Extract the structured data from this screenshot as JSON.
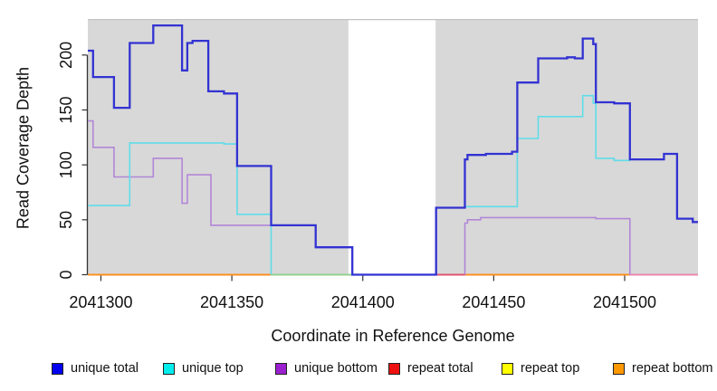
{
  "figure": {
    "xlabel": "Coordinate in Reference Genome",
    "ylabel": "Read Coverage Depth"
  },
  "legend": {
    "items": [
      {
        "label": "unique total",
        "color": "#0000ee"
      },
      {
        "label": "unique top",
        "color": "#00eded"
      },
      {
        "label": "unique bottom",
        "color": "#9b20d0"
      },
      {
        "label": "repeat total",
        "color": "#ee1111"
      },
      {
        "label": "repeat top",
        "color": "#ffff00"
      },
      {
        "label": "repeat bottom",
        "color": "#ff9800"
      }
    ]
  },
  "chart_data": {
    "type": "line",
    "step": true,
    "title": "",
    "xlabel": "Coordinate in Reference Genome",
    "ylabel": "Read Coverage Depth",
    "xlim": [
      2041295,
      2041528
    ],
    "ylim": [
      0,
      232
    ],
    "x_ticks": [
      2041300,
      2041350,
      2041400,
      2041450,
      2041500
    ],
    "y_ticks": [
      0,
      50,
      100,
      150,
      200
    ],
    "grid": false,
    "legend_position": "bottom",
    "plot_bg": "#d8d8d8",
    "gap_region": [
      2041394.5,
      2041427.8
    ],
    "series": [
      {
        "name": "unique total",
        "color": "#3232d2",
        "width": 2.3,
        "steps": [
          [
            2041295,
            204
          ],
          [
            2041297,
            180
          ],
          [
            2041305,
            152
          ],
          [
            2041311,
            211
          ],
          [
            2041320,
            227
          ],
          [
            2041331,
            186
          ],
          [
            2041333,
            211
          ],
          [
            2041335,
            213
          ],
          [
            2041341,
            167
          ],
          [
            2041347,
            165
          ],
          [
            2041352,
            99
          ],
          [
            2041365,
            45
          ],
          [
            2041382,
            25
          ],
          [
            2041396,
            0
          ],
          [
            2041428,
            61
          ],
          [
            2041439,
            105
          ],
          [
            2041440,
            109
          ],
          [
            2041447,
            110
          ],
          [
            2041457,
            112
          ],
          [
            2041459,
            175
          ],
          [
            2041467,
            197
          ],
          [
            2041478,
            198
          ],
          [
            2041481,
            197
          ],
          [
            2041484,
            215
          ],
          [
            2041488,
            210
          ],
          [
            2041489,
            157
          ],
          [
            2041496,
            156
          ],
          [
            2041502,
            105
          ],
          [
            2041515,
            110
          ],
          [
            2041520,
            51
          ],
          [
            2041526,
            48
          ]
        ]
      },
      {
        "name": "unique top",
        "color": "#5fdde9",
        "width": 1.6,
        "steps": [
          [
            2041295,
            63
          ],
          [
            2041311,
            120
          ],
          [
            2041347,
            119
          ],
          [
            2041352,
            55
          ],
          [
            2041365,
            0
          ],
          [
            2041428,
            61
          ],
          [
            2041439,
            62
          ],
          [
            2041459,
            124
          ],
          [
            2041467,
            144
          ],
          [
            2041484,
            163
          ],
          [
            2041488,
            156
          ],
          [
            2041489,
            106
          ],
          [
            2041496,
            104
          ],
          [
            2041502,
            105
          ],
          [
            2041515,
            110
          ],
          [
            2041520,
            51
          ],
          [
            2041526,
            48
          ]
        ]
      },
      {
        "name": "unique bottom",
        "color": "#b286d7",
        "width": 1.6,
        "steps": [
          [
            2041295,
            140
          ],
          [
            2041297,
            116
          ],
          [
            2041305,
            89
          ],
          [
            2041320,
            106
          ],
          [
            2041331,
            65
          ],
          [
            2041333,
            91
          ],
          [
            2041342,
            45
          ],
          [
            2041382,
            25
          ],
          [
            2041396,
            0
          ],
          [
            2041439,
            47
          ],
          [
            2041440,
            50
          ],
          [
            2041445,
            52
          ],
          [
            2041489,
            51
          ],
          [
            2041502,
            0
          ]
        ]
      },
      {
        "name": "repeat total",
        "color": "#dd2222",
        "width": 1.6,
        "steps": [
          [
            2041295,
            0
          ]
        ]
      },
      {
        "name": "repeat top",
        "color": "#f5ef30",
        "width": 1.6,
        "steps": [
          [
            2041295,
            0
          ]
        ]
      },
      {
        "name": "repeat bottom",
        "color": "#ff8c1e",
        "width": 1.8,
        "steps": [
          [
            2041295,
            0
          ]
        ]
      }
    ],
    "baseline_segments": [
      {
        "from": 2041365,
        "to": 2041396,
        "color": "#8fd392"
      },
      {
        "from": 2041428,
        "to": 2041439,
        "color": "#e04f70"
      },
      {
        "from": 2041502,
        "to": 2041528,
        "color": "#ee86b3"
      }
    ]
  }
}
